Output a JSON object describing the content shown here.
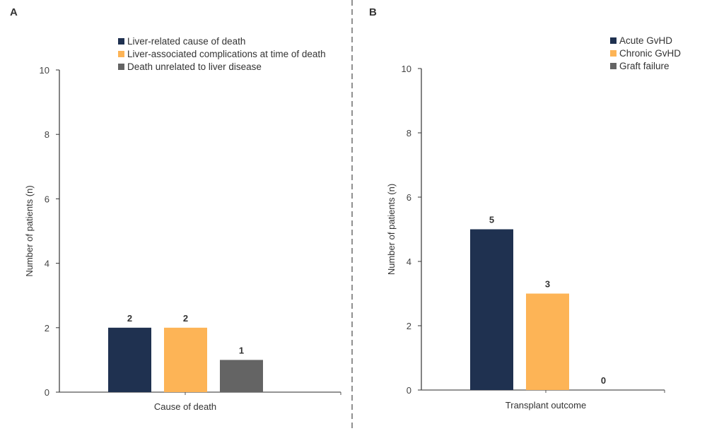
{
  "figure": {
    "colors": {
      "navy": "#1f3150",
      "orange": "#fdb456",
      "gray": "#646464",
      "axis": "#333333",
      "divider": "#555555"
    }
  },
  "chart_data": [
    {
      "panel": "A",
      "type": "bar",
      "title": "",
      "xlabel": "Cause of death",
      "ylabel": "Number of patients (n)",
      "ylim": [
        0,
        10
      ],
      "yticks": [
        0,
        2,
        4,
        6,
        8,
        10
      ],
      "grid": false,
      "legend_position": "top-right",
      "categories": [
        "Cause of death"
      ],
      "series": [
        {
          "name": "Liver-related cause of death",
          "values": [
            2
          ],
          "color": "#1f3150"
        },
        {
          "name": "Liver-associated complications at time of death",
          "values": [
            2
          ],
          "color": "#fdb456"
        },
        {
          "name": "Death unrelated to liver disease",
          "values": [
            1
          ],
          "color": "#646464"
        }
      ]
    },
    {
      "panel": "B",
      "type": "bar",
      "title": "",
      "xlabel": "Transplant outcome",
      "ylabel": "Number of patients (n)",
      "ylim": [
        0,
        10
      ],
      "yticks": [
        0,
        2,
        4,
        6,
        8,
        10
      ],
      "grid": false,
      "legend_position": "top-right",
      "categories": [
        "Transplant outcome"
      ],
      "series": [
        {
          "name": "Acute GvHD",
          "values": [
            5
          ],
          "color": "#1f3150"
        },
        {
          "name": "Chronic GvHD",
          "values": [
            3
          ],
          "color": "#fdb456"
        },
        {
          "name": "Graft failure",
          "values": [
            0
          ],
          "color": "#646464"
        }
      ]
    }
  ]
}
